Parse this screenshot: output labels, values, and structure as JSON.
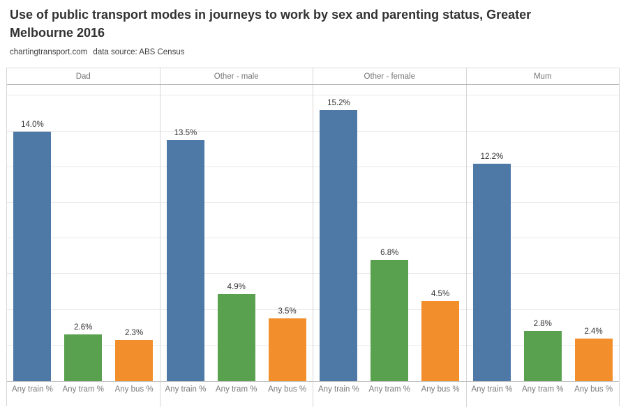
{
  "page": {
    "title_line1": "Use of public transport modes in journeys to work by sex and parenting status, Greater",
    "title_line2": "Melbourne 2016",
    "subtitle_source": "chartingtransport.com",
    "subtitle_note": "data source: ABS Census"
  },
  "chart_data": {
    "type": "bar",
    "title": "Use of public transport modes in journeys to work by sex and parenting status, Greater Melbourne 2016",
    "subtitle": "chartingtransport.com  data source: ABS Census",
    "x_categories": [
      "Any train %",
      "Any tram %",
      "Any bus %"
    ],
    "panels": [
      {
        "header": "Dad",
        "values": [
          14.0,
          2.6,
          2.3
        ],
        "labels": [
          "14.0%",
          "2.6%",
          "2.3%"
        ]
      },
      {
        "header": "Other - male",
        "values": [
          13.5,
          4.9,
          3.5
        ],
        "labels": [
          "13.5%",
          "4.9%",
          "3.5%"
        ]
      },
      {
        "header": "Other - female",
        "values": [
          15.2,
          6.8,
          4.5
        ],
        "labels": [
          "15.2%",
          "6.8%",
          "4.5%"
        ]
      },
      {
        "header": "Mum",
        "values": [
          12.2,
          2.8,
          2.4
        ],
        "labels": [
          "12.2%",
          "2.8%",
          "2.4%"
        ]
      }
    ],
    "series_colors": {
      "train": "#4e79a7",
      "tram": "#59a14f",
      "bus": "#f28e2b"
    },
    "ylabel": "",
    "xlabel": "",
    "ylim": [
      0,
      16.6
    ],
    "gridline_values": [
      2,
      4,
      6,
      8,
      10,
      12,
      14,
      16
    ],
    "grid": true,
    "legend": "none",
    "value_label_color": "#333333"
  }
}
